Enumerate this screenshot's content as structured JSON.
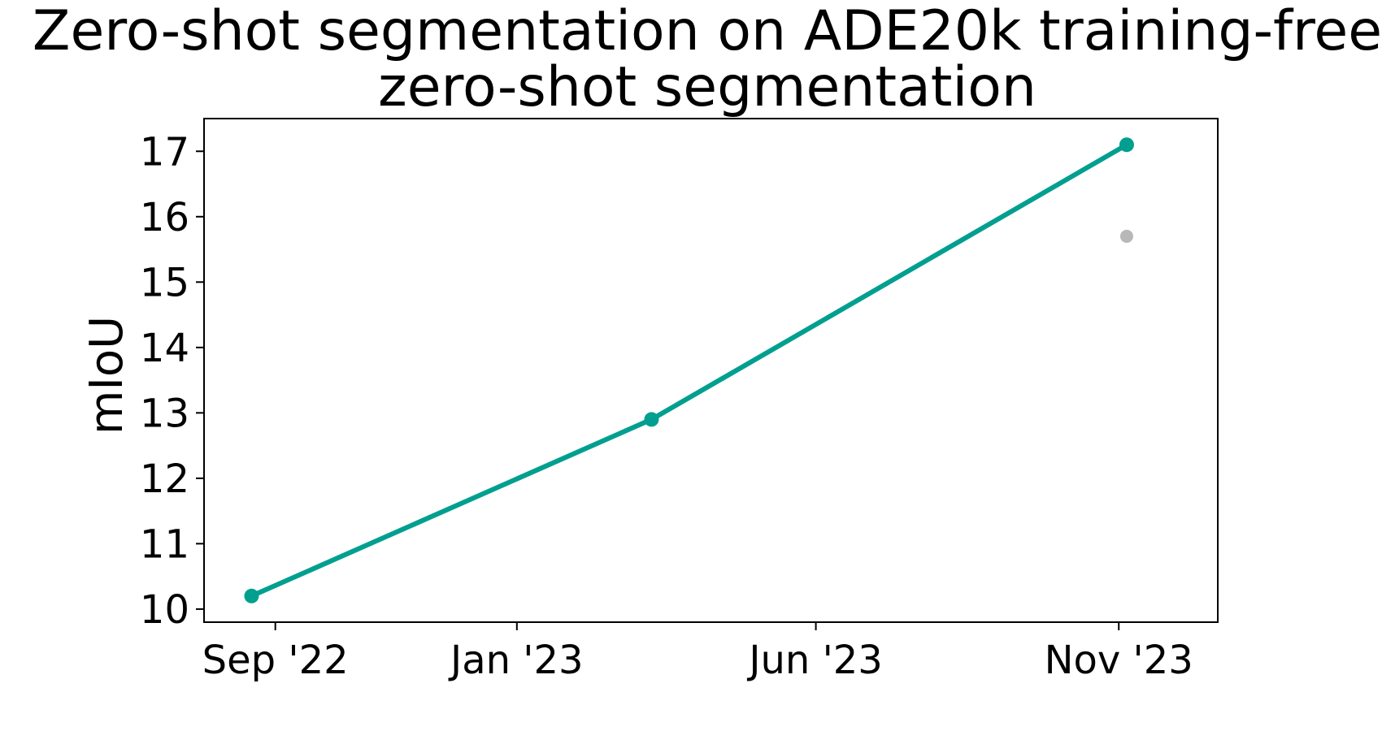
{
  "chart_data": {
    "type": "line",
    "title_line1": "Zero-shot segmentation on ADE20k training-free",
    "title_line2": "zero-shot segmentation",
    "xlabel": "",
    "ylabel": "mIoU",
    "x_ticks": [
      "Sep '22",
      "Jan '23",
      "Jun '23",
      "Nov '23"
    ],
    "y_ticks": [
      "10",
      "11",
      "12",
      "13",
      "14",
      "15",
      "16",
      "17"
    ],
    "ylim": [
      9.8,
      17.5
    ],
    "xlim": [
      "2022-07-27",
      "2023-12-21"
    ],
    "grid": false,
    "series": [
      {
        "color": "#009f8f",
        "points": [
          {
            "x": "2022-08-20",
            "y": 10.2
          },
          {
            "x": "2023-03-10",
            "y": 12.9
          },
          {
            "x": "2023-11-05",
            "y": 17.1
          }
        ]
      },
      {
        "color": "#b8b8b8",
        "points": [
          {
            "x": "2023-11-05",
            "y": 15.7
          }
        ]
      }
    ]
  }
}
